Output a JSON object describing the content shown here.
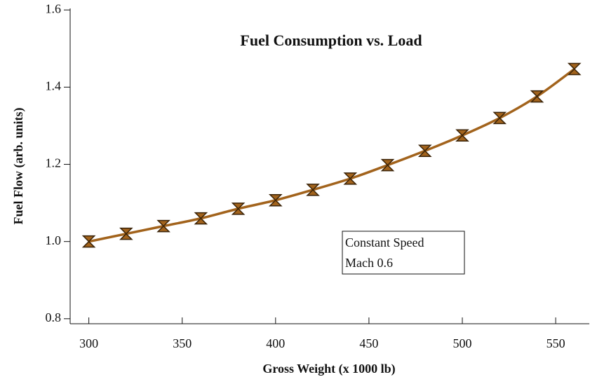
{
  "chart_data": {
    "type": "line",
    "title": "Fuel Consumption vs. Load",
    "xlabel": "Gross Weight (x 1000 lb)",
    "ylabel": "Fuel Flow (arb. units)",
    "annotation": [
      "Constant Speed",
      "Mach 0.6"
    ],
    "x": [
      300,
      320,
      340,
      360,
      380,
      400,
      420,
      440,
      460,
      480,
      500,
      520,
      540,
      560
    ],
    "series": [
      {
        "name": "Fuel Flow",
        "color": "#a2631c",
        "values": [
          1.0,
          1.02,
          1.04,
          1.06,
          1.085,
          1.107,
          1.134,
          1.163,
          1.198,
          1.235,
          1.275,
          1.32,
          1.376,
          1.447
        ]
      }
    ],
    "xlim": [
      290,
      568
    ],
    "xticks": [
      300,
      350,
      400,
      450,
      500,
      550
    ],
    "ylim": [
      0.787,
      1.604
    ],
    "yticks": [
      {
        "value": 0.8,
        "label": "0.8"
      },
      {
        "value": 1.0,
        "label": "1.0"
      },
      {
        "value": 1.2,
        "label": "1.2"
      },
      {
        "value": 1.4,
        "label": "1.4"
      },
      {
        "value": 1.6,
        "label": "1.6"
      }
    ]
  }
}
